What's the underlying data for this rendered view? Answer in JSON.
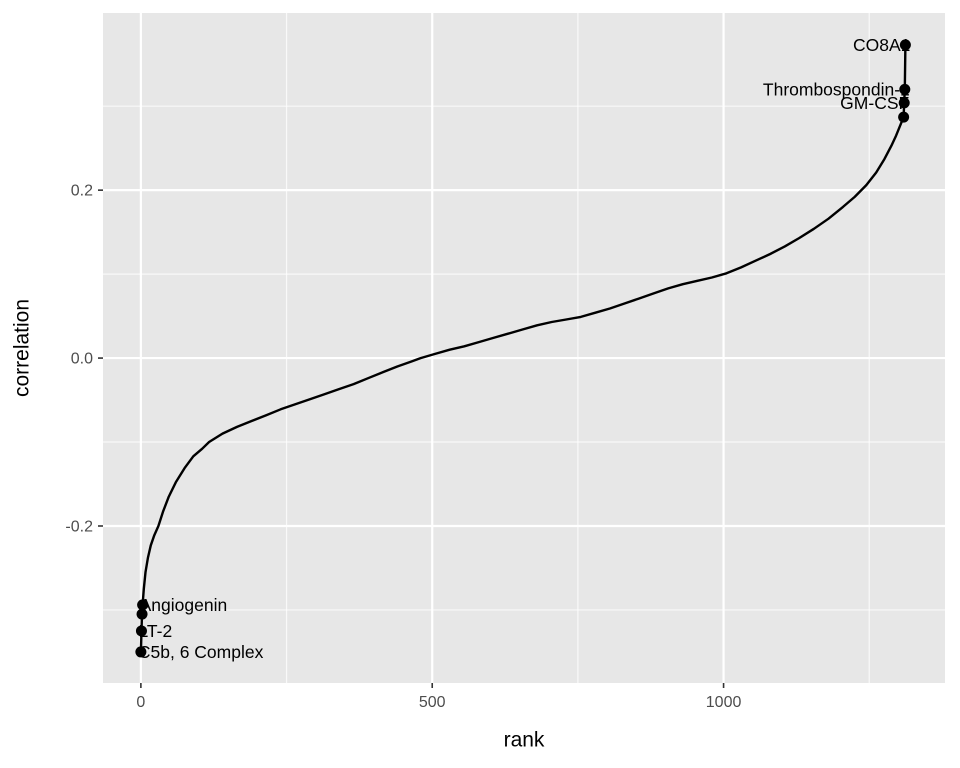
{
  "style": {
    "figure_background": "#FFFFFF",
    "panel_background": "#E7E7E7",
    "grid_major_color": "#FFFFFF",
    "grid_minor_color": "#FFFFFF",
    "line_color": "#000000",
    "point_color": "#000000",
    "point_label_color": "#000000",
    "tick_label_color": "#4D4D4D",
    "tick_mark_color": "#333333",
    "axis_title_color": "#000000"
  },
  "chart_data": {
    "type": "line",
    "x_axis": {
      "title": "rank",
      "major_ticks": [
        {
          "value": 0,
          "label": "0"
        },
        {
          "value": 500,
          "label": "500"
        },
        {
          "value": 1000,
          "label": "1000"
        }
      ],
      "minor_ticks": [
        250,
        750,
        1250
      ]
    },
    "y_axis": {
      "title": "correlation",
      "major_ticks": [
        {
          "value": 0.2,
          "label": "0.2"
        },
        {
          "value": 0.0,
          "label": "0.0"
        },
        {
          "value": -0.2,
          "label": "-0.2"
        }
      ],
      "minor_ticks": [
        0.3,
        0.1,
        -0.1,
        -0.3
      ]
    },
    "xlim": [
      -65,
      1380
    ],
    "ylim": [
      -0.387,
      0.411
    ],
    "grid": true,
    "legend": "none",
    "series": [
      {
        "name": "correlation vs rank",
        "points": [
          [
            0,
            -0.35
          ],
          [
            1,
            -0.325
          ],
          [
            2,
            -0.305
          ],
          [
            3,
            -0.294
          ],
          [
            5,
            -0.275
          ],
          [
            8,
            -0.255
          ],
          [
            12,
            -0.238
          ],
          [
            17,
            -0.223
          ],
          [
            23,
            -0.211
          ],
          [
            30,
            -0.2
          ],
          [
            38,
            -0.183
          ],
          [
            48,
            -0.165
          ],
          [
            60,
            -0.148
          ],
          [
            75,
            -0.131
          ],
          [
            90,
            -0.117
          ],
          [
            105,
            -0.108
          ],
          [
            117,
            -0.1
          ],
          [
            140,
            -0.09
          ],
          [
            165,
            -0.082
          ],
          [
            190,
            -0.075
          ],
          [
            215,
            -0.068
          ],
          [
            240,
            -0.061
          ],
          [
            265,
            -0.055
          ],
          [
            290,
            -0.049
          ],
          [
            315,
            -0.043
          ],
          [
            340,
            -0.037
          ],
          [
            365,
            -0.031
          ],
          [
            390,
            -0.024
          ],
          [
            415,
            -0.017
          ],
          [
            440,
            -0.01
          ],
          [
            465,
            -0.004
          ],
          [
            480,
            0.0
          ],
          [
            505,
            0.005
          ],
          [
            530,
            0.01
          ],
          [
            555,
            0.014
          ],
          [
            580,
            0.019
          ],
          [
            605,
            0.024
          ],
          [
            630,
            0.029
          ],
          [
            655,
            0.034
          ],
          [
            680,
            0.039
          ],
          [
            705,
            0.043
          ],
          [
            730,
            0.046
          ],
          [
            755,
            0.049
          ],
          [
            780,
            0.054
          ],
          [
            805,
            0.059
          ],
          [
            830,
            0.065
          ],
          [
            855,
            0.071
          ],
          [
            880,
            0.077
          ],
          [
            905,
            0.083
          ],
          [
            930,
            0.088
          ],
          [
            955,
            0.092
          ],
          [
            980,
            0.096
          ],
          [
            1005,
            0.101
          ],
          [
            1030,
            0.108
          ],
          [
            1055,
            0.116
          ],
          [
            1080,
            0.124
          ],
          [
            1105,
            0.133
          ],
          [
            1130,
            0.143
          ],
          [
            1155,
            0.154
          ],
          [
            1180,
            0.166
          ],
          [
            1205,
            0.18
          ],
          [
            1225,
            0.192
          ],
          [
            1245,
            0.206
          ],
          [
            1262,
            0.221
          ],
          [
            1276,
            0.237
          ],
          [
            1288,
            0.253
          ],
          [
            1296,
            0.265
          ],
          [
            1302,
            0.275
          ],
          [
            1306,
            0.282
          ],
          [
            1309,
            0.287
          ],
          [
            1310,
            0.304
          ],
          [
            1311,
            0.32
          ],
          [
            1312,
            0.373
          ]
        ]
      }
    ],
    "labeled_points": [
      {
        "label": "CO8A1",
        "rank": 1312,
        "correlation": 0.373,
        "label_side": "left"
      },
      {
        "label": "Thrombospondin-1",
        "rank": 1311,
        "correlation": 0.32,
        "label_side": "left"
      },
      {
        "label": "GM-CSF",
        "rank": 1310,
        "correlation": 0.304,
        "label_side": "left"
      },
      {
        "label": "Angiogenin",
        "rank": 3,
        "correlation": -0.294,
        "label_side": "right"
      },
      {
        "label": "LT-2",
        "rank": 1,
        "correlation": -0.325,
        "label_side": "right"
      },
      {
        "label": "C5b, 6 Complex",
        "rank": 0,
        "correlation": -0.35,
        "label_side": "right"
      }
    ],
    "unlabeled_highlight_points": [
      {
        "rank": 2,
        "correlation": -0.305
      },
      {
        "rank": 1309,
        "correlation": 0.287
      }
    ]
  }
}
